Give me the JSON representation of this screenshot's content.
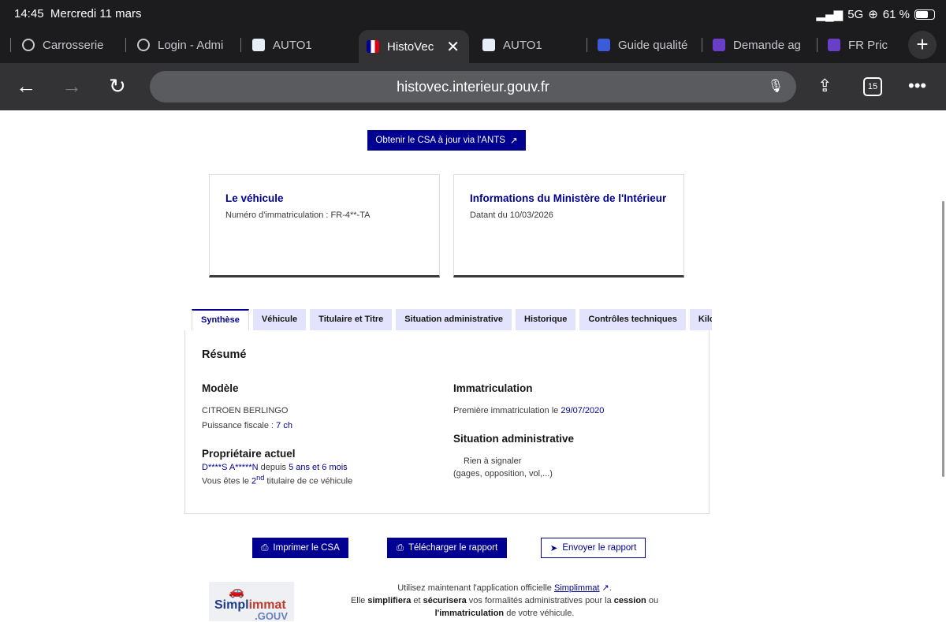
{
  "status": {
    "time": "14:45",
    "date": "Mercredi 11 mars",
    "network": "5G",
    "battery": "61 %"
  },
  "tabs": [
    {
      "label": "Carrosserie",
      "icon": "globe-icon"
    },
    {
      "label": "Login - Admi",
      "icon": "globe-icon"
    },
    {
      "label": "AUTO1",
      "icon": "auto1-icon"
    },
    {
      "label": "HistoVec",
      "icon": "marianne-icon",
      "active": true
    },
    {
      "label": "AUTO1",
      "icon": "auto1-icon"
    },
    {
      "label": "Guide qualité",
      "icon": "slides-icon"
    },
    {
      "label": "Demande ag",
      "icon": "forms-icon"
    },
    {
      "label": "FR Pric",
      "icon": "forms-icon"
    }
  ],
  "toolbar": {
    "url": "histovec.interieur.gouv.fr",
    "tab_count": "15"
  },
  "page": {
    "csa_button": "Obtenir le CSA à jour via l'ANTS",
    "card_vehicle": {
      "title": "Le véhicule",
      "text": "Numéro d'immatriculation : FR-4**-TA"
    },
    "card_ministry": {
      "title": "Informations du Ministère de l'Intérieur",
      "text": "Datant du 10/03/2026"
    },
    "nav_tabs": [
      "Synthèse",
      "Véhicule",
      "Titulaire et Titre",
      "Situation administrative",
      "Historique",
      "Contrôles techniques",
      "Kilométrage"
    ],
    "summary": {
      "title": "Résumé",
      "model_heading": "Modèle",
      "model": "CITROEN BERLINGO",
      "power_label": "Puissance fiscale : ",
      "power": "7 ch",
      "owner_heading": "Propriétaire actuel",
      "owner": "D****S A*****N",
      "since_label": " depuis ",
      "since": "5 ans et 6 mois",
      "holder_pre": "Vous êtes le ",
      "holder_num": "2",
      "holder_sup": "nd",
      "holder_post": " titulaire de ce véhicule",
      "immat_heading": "Immatriculation",
      "immat_label": "Première immatriculation le ",
      "immat_date": "29/07/2020",
      "admin_heading": "Situation administrative",
      "admin_status": "Rien à signaler",
      "admin_note": "(gages, opposition, vol,...)"
    },
    "actions": {
      "print": "Imprimer le CSA",
      "download": "Télécharger le rapport",
      "send": "Envoyer le rapport"
    },
    "promo": {
      "logo_text": "Simplimmat .GOUV",
      "l1": "Utilisez maintenant l'application officielle ",
      "link": "Simplimmat",
      "p1": "Elle ",
      "b1": "simplifiera",
      "p2": " et ",
      "b2": "sécurisera",
      "p3": " vos formalités administratives pour la ",
      "b3": "cession",
      "p4": " ou ",
      "b4": "l'immatriculation",
      "p5": " de votre véhicule."
    }
  },
  "colors": {
    "accent": "#000091",
    "tab_bg": "#e3e3fd"
  }
}
